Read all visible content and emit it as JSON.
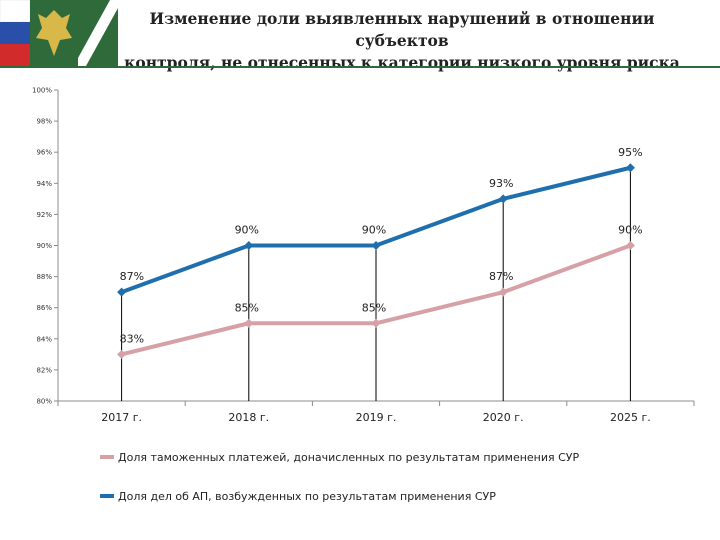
{
  "header": {
    "title": "Изменение доли выявленных нарушений в отношении субъектов\nконтроля, не отнесенных к категории низкого уровня риска"
  },
  "colors": {
    "accent_green": "#2f6b3a",
    "series_blue": "#1f6fae",
    "series_pink": "#d7a0a6"
  },
  "chart_data": {
    "type": "line",
    "title": "Изменение доли выявленных нарушений в отношении субъектов контроля, не отнесенных к категории низкого уровня риска",
    "categories": [
      "2017 г.",
      "2018 г.",
      "2019 г.",
      "2020 г.",
      "2025 г."
    ],
    "ylim": [
      80,
      100
    ],
    "yticks": [
      80,
      82,
      84,
      86,
      88,
      90,
      92,
      94,
      96,
      98,
      100
    ],
    "ytick_labels": [
      "80%",
      "82%",
      "84%",
      "86%",
      "88%",
      "90%",
      "92%",
      "94%",
      "96%",
      "98%",
      "100%"
    ],
    "xlabel": "",
    "ylabel": "",
    "grid": false,
    "legend_position": "bottom",
    "series": [
      {
        "name": "Доля таможенных платежей, доначисленных по результатам применения СУР",
        "color": "#d7a0a6",
        "values": [
          83,
          85,
          85,
          87,
          90
        ],
        "labels": [
          "83%",
          "85%",
          "85%",
          "87%",
          "90%"
        ]
      },
      {
        "name": "Доля дел об АП, возбужденных по результатам применения СУР",
        "color": "#1f6fae",
        "values": [
          87,
          90,
          90,
          93,
          95
        ],
        "labels": [
          "87%",
          "90%",
          "90%",
          "93%",
          "95%"
        ]
      }
    ]
  }
}
